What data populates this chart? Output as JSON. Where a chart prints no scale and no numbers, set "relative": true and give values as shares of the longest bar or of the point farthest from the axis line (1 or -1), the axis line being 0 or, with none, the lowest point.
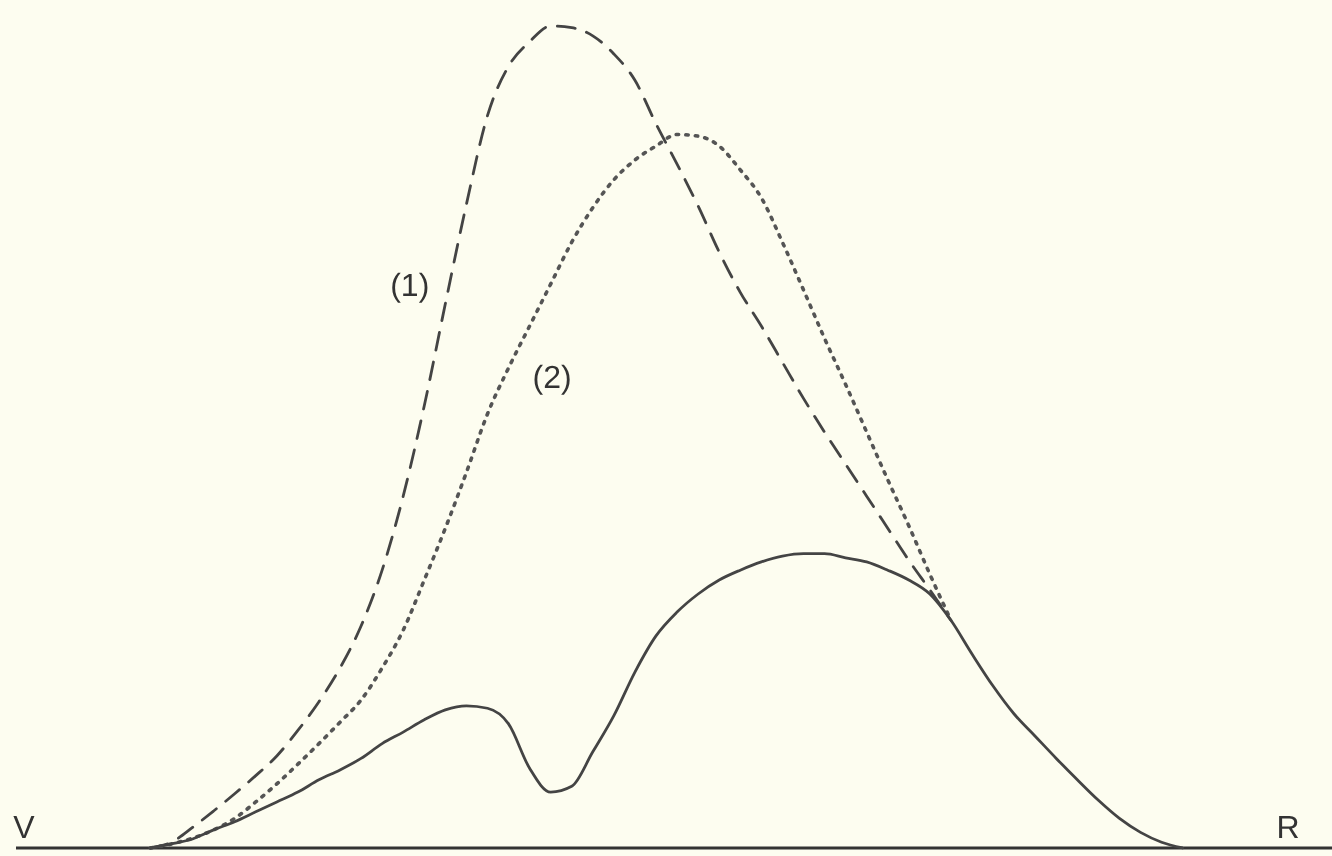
{
  "chart_data": {
    "type": "line",
    "relative": true,
    "categories": [
      "V",
      null,
      null,
      null,
      null,
      null,
      null,
      null,
      null,
      null,
      null,
      null,
      null,
      null,
      null,
      null,
      null,
      null,
      null,
      null,
      null,
      null,
      null,
      null,
      null,
      null,
      null,
      null,
      null,
      null,
      null,
      null,
      null,
      null,
      null,
      null,
      null,
      null,
      null,
      null,
      null,
      null,
      null,
      null,
      null,
      null,
      null,
      null,
      null,
      null,
      null,
      null,
      null,
      null,
      null,
      null,
      null,
      null,
      null,
      null,
      "R"
    ],
    "series": [
      {
        "name": "(1)",
        "color": "#444444",
        "line_style": "dashed",
        "values": [
          null,
          null,
          null,
          null,
          null,
          null,
          0,
          0.007,
          0.025,
          0.045,
          0.066,
          0.088,
          0.112,
          0.143,
          0.178,
          0.219,
          0.27,
          0.338,
          0.428,
          0.538,
          0.662,
          0.783,
          0.891,
          0.951,
          0.981,
          1,
          0.998,
          0.988,
          0.966,
          0.934,
          0.881,
          0.832,
          0.781,
          0.725,
          0.676,
          0.635,
          0.591,
          0.547,
          0.506,
          0.467,
          0.428,
          0.389,
          0.35,
          0.314,
          0.277,
          null,
          null,
          null,
          null,
          null,
          null,
          null,
          null,
          null,
          null,
          null,
          null,
          null,
          null,
          null,
          null
        ]
      },
      {
        "name": "(2)",
        "color": "#555555",
        "line_style": "dotted",
        "values": [
          null,
          null,
          null,
          null,
          null,
          null,
          0,
          0.005,
          0.012,
          0.022,
          0.036,
          0.056,
          0.078,
          0.102,
          0.127,
          0.153,
          0.18,
          0.219,
          0.265,
          0.326,
          0.389,
          0.457,
          0.528,
          0.584,
          0.635,
          0.686,
          0.737,
          0.779,
          0.813,
          0.837,
          0.854,
          0.868,
          0.866,
          0.854,
          0.825,
          0.791,
          0.737,
          0.679,
          0.62,
          0.564,
          0.506,
          0.448,
          0.392,
          0.333,
          0.277,
          null,
          null,
          null,
          null,
          null,
          null,
          null,
          null,
          null,
          null,
          null,
          null,
          null,
          null,
          null,
          null
        ]
      },
      {
        "color": "#444444",
        "line_style": "solid",
        "values": [
          null,
          null,
          null,
          null,
          null,
          null,
          0,
          0.005,
          0.011,
          0.022,
          0.032,
          0.044,
          0.056,
          0.068,
          0.083,
          0.095,
          0.109,
          0.127,
          0.141,
          0.156,
          0.168,
          0.173,
          0.17,
          0.151,
          0.097,
          0.068,
          0.075,
          0.117,
          0.161,
          0.214,
          0.258,
          0.287,
          0.309,
          0.326,
          0.338,
          0.348,
          0.355,
          0.358,
          0.358,
          0.353,
          0.348,
          0.338,
          0.326,
          0.309,
          0.277,
          0.236,
          0.197,
          0.163,
          0.136,
          0.109,
          0.083,
          0.058,
          0.036,
          0.019,
          0.007,
          0,
          null,
          null,
          null,
          null,
          null
        ]
      }
    ]
  }
}
